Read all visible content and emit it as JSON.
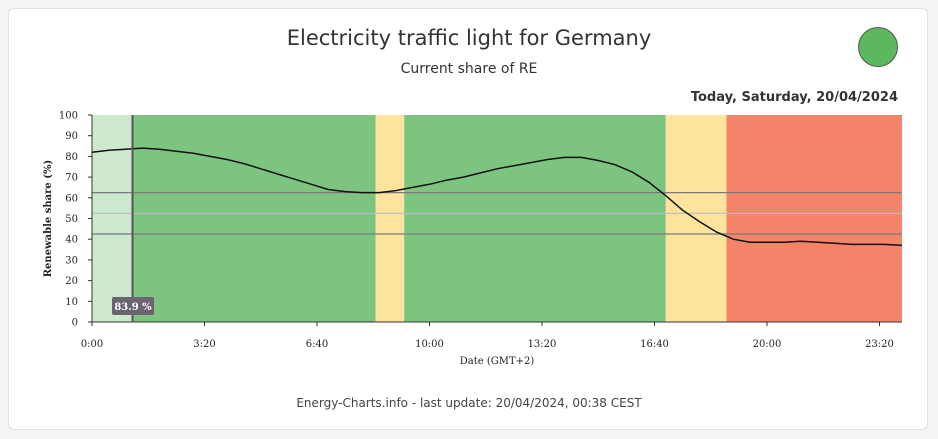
{
  "header": {
    "title": "Electricity traffic light for Germany",
    "subtitle": "Current share of RE",
    "date": "Today, Saturday, 20/04/2024"
  },
  "status_light": {
    "color": "#5cb85c"
  },
  "footer": {
    "text": "Energy-Charts.info - last update: 20/04/2024, 00:38 CEST"
  },
  "colors": {
    "green": "#7cc47f",
    "green_past": "#cde9cd",
    "yellow": "#fde39c",
    "red": "#f4846a"
  },
  "chart_data": {
    "type": "line",
    "xlabel": "Date (GMT+2)",
    "ylabel": "Renewable share (%)",
    "ylim": [
      0,
      100
    ],
    "xlim_hours": [
      0,
      24
    ],
    "y_ticks": [
      0,
      10,
      20,
      30,
      40,
      50,
      60,
      70,
      80,
      90,
      100
    ],
    "x_ticks": [
      {
        "label": "0:00",
        "hour": 0
      },
      {
        "label": "3:20",
        "hour": 3.333
      },
      {
        "label": "6:40",
        "hour": 6.667
      },
      {
        "label": "10:00",
        "hour": 10
      },
      {
        "label": "13:20",
        "hour": 13.333
      },
      {
        "label": "16:40",
        "hour": 16.667
      },
      {
        "label": "20:00",
        "hour": 20
      },
      {
        "label": "23:20",
        "hour": 23.333
      }
    ],
    "threshold_lines": [
      62.5,
      52.5,
      42.5
    ],
    "bands": [
      {
        "from": 0,
        "to": 1.2,
        "status": "green",
        "past": true
      },
      {
        "from": 1.2,
        "to": 8.4,
        "status": "green"
      },
      {
        "from": 8.4,
        "to": 9.25,
        "status": "yellow"
      },
      {
        "from": 9.25,
        "to": 17.0,
        "status": "green"
      },
      {
        "from": 17.0,
        "to": 18.8,
        "status": "yellow"
      },
      {
        "from": 18.8,
        "to": 24,
        "status": "red"
      }
    ],
    "current_marker": {
      "hour": 1.2,
      "label": "83.9 %"
    },
    "series": [
      {
        "x": [
          0,
          0.5,
          1.0,
          1.5,
          2.0,
          2.5,
          3.0,
          3.5,
          4.0,
          4.5,
          5.0,
          5.5,
          6.0,
          6.5,
          7.0,
          7.5,
          8.0,
          8.5,
          9.0,
          9.5,
          10.0,
          10.5,
          11.0,
          11.5,
          12.0,
          12.5,
          13.0,
          13.5,
          14.0,
          14.5,
          15.0,
          15.5,
          16.0,
          16.5,
          17.0,
          17.5,
          18.0,
          18.5,
          19.0,
          19.5,
          20.0,
          20.5,
          21.0,
          21.5,
          22.0,
          22.5,
          23.0,
          23.5,
          24.0
        ],
        "y": [
          82,
          83,
          83.5,
          84,
          83.5,
          82.5,
          81.5,
          80,
          78.5,
          76.5,
          74,
          71.5,
          69,
          66.5,
          64,
          63,
          62.5,
          62.5,
          63.5,
          65,
          66.5,
          68.5,
          70,
          72,
          74,
          75.5,
          77,
          78.5,
          79.5,
          79.5,
          78,
          76,
          72.5,
          67.5,
          61,
          54,
          48.5,
          43.5,
          40,
          38.5,
          38.5,
          38.5,
          39,
          38.5,
          38,
          37.5,
          37.5,
          37.5,
          37
        ]
      }
    ]
  }
}
